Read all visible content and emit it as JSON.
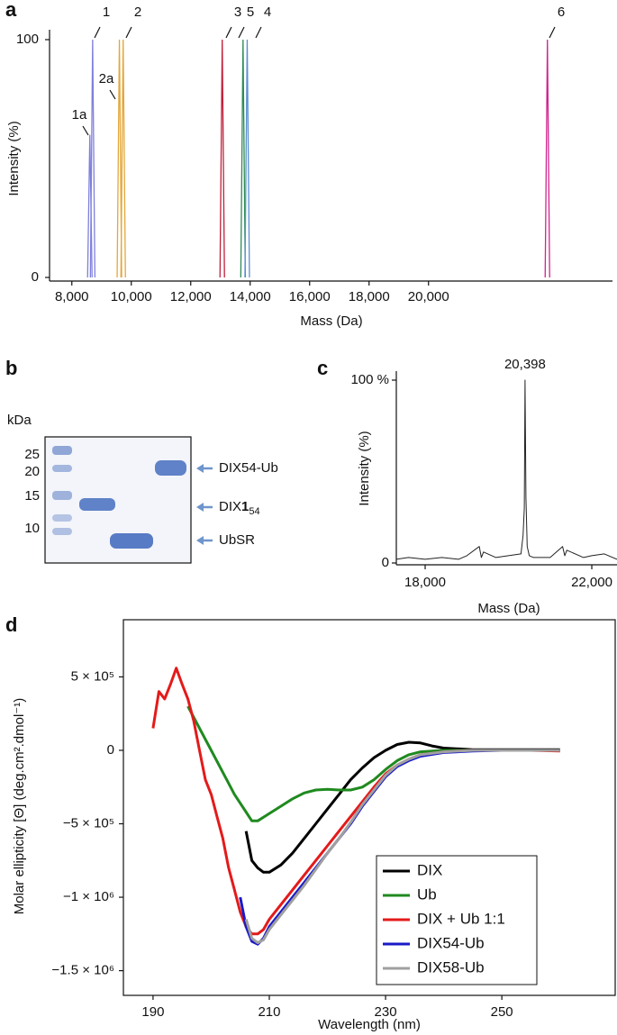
{
  "chart_data": [
    {
      "panel": "a",
      "type": "peaks",
      "xlabel": "Mass (Da)",
      "ylabel": "Intensity (%)",
      "xlim": [
        7250,
        26190
      ],
      "ylim": [
        0,
        100
      ],
      "xticks": [
        {
          "value": 8000,
          "label": "8,000"
        },
        {
          "value": 10000,
          "label": "10,000"
        },
        {
          "value": 12000,
          "label": "12,000"
        },
        {
          "value": 14000,
          "label": "14,000"
        },
        {
          "value": 16000,
          "label": "16,000"
        },
        {
          "value": 18000,
          "label": "18,000"
        },
        {
          "value": 20000,
          "label": "20,000"
        }
      ],
      "yticks": [
        0,
        100
      ],
      "series": [
        {
          "name": "1a",
          "color": "#7f7fdc",
          "x": [
            8606
          ],
          "values": [
            60
          ]
        },
        {
          "name": "1",
          "color": "#7f7fdc",
          "x": [
            8700
          ],
          "values": [
            100
          ]
        },
        {
          "name": "2a",
          "color": "#e3a73a",
          "x": [
            9600
          ],
          "values": [
            100
          ]
        },
        {
          "name": "2",
          "color": "#e3a73a",
          "x": [
            9727
          ],
          "values": [
            100
          ]
        },
        {
          "name": "3",
          "color": "#c0203a",
          "x": [
            13060
          ],
          "values": [
            100
          ]
        },
        {
          "name": "5",
          "color": "#2e8b57",
          "x": [
            13760
          ],
          "values": [
            100
          ]
        },
        {
          "name": "4",
          "color": "#5b8fd2",
          "x": [
            13900
          ],
          "values": [
            100
          ]
        },
        {
          "name": "6",
          "color": "#d0248f",
          "x": [
            24000
          ],
          "values": [
            100
          ]
        }
      ]
    },
    {
      "panel": "c",
      "type": "line",
      "xlabel": "Mass (Da)",
      "ylabel": "Intensity (%)",
      "xlim": [
        17308,
        22605
      ],
      "ylim": [
        0,
        100
      ],
      "xticks": [
        {
          "value": 18000,
          "label": "18,000"
        },
        {
          "value": 22000,
          "label": "22,000"
        }
      ],
      "yticks": [
        0,
        {
          "value": 100,
          "label": "100 %"
        }
      ],
      "annotations": [
        {
          "text": "20,398",
          "x": 20398
        }
      ],
      "series": [
        {
          "color": "#222222",
          "x": [
            17308,
            17600,
            18000,
            18400,
            18800,
            19000,
            19300,
            19350,
            19400,
            19700,
            20000,
            20300,
            20350,
            20380,
            20398,
            20420,
            20450,
            20500,
            20600,
            21000,
            21300,
            21350,
            21400,
            21800,
            22000,
            22300,
            22605
          ],
          "values": [
            2,
            3,
            2,
            3,
            2,
            4,
            9,
            3,
            6,
            3,
            4,
            5,
            15,
            30,
            100,
            36,
            9,
            4,
            3,
            3,
            9,
            4,
            7,
            3,
            4,
            5,
            2
          ]
        }
      ]
    },
    {
      "panel": "d",
      "type": "line",
      "xlabel": "Wavelength (nm)",
      "ylabel": "Molar ellipticity [Θ] (deg.cm².dmol⁻¹)",
      "xlim": [
        184.9,
        269.5
      ],
      "ylim": [
        -1668000,
        889000
      ],
      "xticks": [
        190,
        210,
        230,
        250
      ],
      "yticks": [
        {
          "value": 500000,
          "label": "5 × 10⁵"
        },
        0,
        {
          "value": -500000,
          "label": "−5 × 10⁵"
        },
        {
          "value": -1000000,
          "label": "−1 × 10⁶"
        },
        {
          "value": -1500000,
          "label": "−1.5 × 10⁶"
        }
      ],
      "legend": "lower right",
      "series": [
        {
          "name": "DIX",
          "color": "#000000",
          "x": [
            206,
            207,
            208,
            209,
            210,
            212,
            214,
            216,
            218,
            220,
            222,
            224,
            226,
            228,
            230,
            232,
            234,
            236,
            238,
            240,
            245,
            250,
            260
          ],
          "values": [
            -550000,
            -750000,
            -800000,
            -830000,
            -830000,
            -780000,
            -700000,
            -600000,
            -500000,
            -400000,
            -300000,
            -200000,
            -120000,
            -50000,
            0,
            40000,
            55000,
            50000,
            30000,
            15000,
            5000,
            5000,
            5000
          ]
        },
        {
          "name": "Ub",
          "color": "#1f8a1f",
          "x": [
            196,
            198,
            200,
            202,
            204,
            206,
            207,
            208,
            210,
            212,
            214,
            216,
            218,
            220,
            222,
            224,
            226,
            228,
            230,
            232,
            234,
            236,
            240,
            250,
            260
          ],
          "values": [
            300000,
            150000,
            0,
            -150000,
            -300000,
            -420000,
            -480000,
            -480000,
            -430000,
            -380000,
            -330000,
            -290000,
            -270000,
            -265000,
            -270000,
            -270000,
            -250000,
            -200000,
            -130000,
            -70000,
            -30000,
            -10000,
            0,
            0,
            0
          ]
        },
        {
          "name": "DIX + Ub 1:1",
          "color": "#e41a1a",
          "x": [
            190,
            191,
            192,
            193,
            194,
            195,
            196,
            197,
            198,
            199,
            200,
            201,
            202,
            203,
            204,
            205,
            206,
            207,
            208,
            209,
            210,
            212,
            214,
            216,
            218,
            220,
            222,
            224,
            226,
            228,
            230,
            232,
            234,
            236,
            240,
            245,
            250,
            255,
            260
          ],
          "values": [
            150000,
            400000,
            350000,
            450000,
            560000,
            450000,
            350000,
            200000,
            0,
            -200000,
            -300000,
            -450000,
            -600000,
            -800000,
            -950000,
            -1100000,
            -1200000,
            -1250000,
            -1250000,
            -1220000,
            -1150000,
            -1050000,
            -950000,
            -850000,
            -750000,
            -650000,
            -550000,
            -450000,
            -350000,
            -250000,
            -160000,
            -100000,
            -60000,
            -30000,
            -10000,
            0,
            0,
            0,
            -5000
          ]
        },
        {
          "name": "DIX54-Ub",
          "color": "#1a1ac8",
          "x": [
            205,
            206,
            207,
            208,
            209,
            210,
            212,
            214,
            216,
            218,
            220,
            222,
            224,
            226,
            228,
            230,
            232,
            234,
            236,
            240,
            245,
            250,
            255,
            260
          ],
          "values": [
            -1000000,
            -1200000,
            -1300000,
            -1320000,
            -1280000,
            -1200000,
            -1100000,
            -1000000,
            -900000,
            -800000,
            -700000,
            -600000,
            -500000,
            -380000,
            -280000,
            -180000,
            -110000,
            -70000,
            -40000,
            -15000,
            -5000,
            0,
            0,
            0
          ]
        },
        {
          "name": "DIX58-Ub",
          "color": "#a0a0a0",
          "x": [
            206,
            207,
            208,
            209,
            210,
            212,
            214,
            216,
            218,
            220,
            222,
            224,
            226,
            228,
            230,
            232,
            234,
            236,
            240,
            245,
            250,
            255,
            260
          ],
          "values": [
            -1150000,
            -1280000,
            -1310000,
            -1290000,
            -1220000,
            -1120000,
            -1020000,
            -920000,
            -810000,
            -700000,
            -600000,
            -490000,
            -370000,
            -270000,
            -170000,
            -100000,
            -60000,
            -30000,
            -10000,
            0,
            0,
            0,
            0
          ]
        }
      ]
    }
  ],
  "gel": {
    "panel": "b",
    "unit": "kDa",
    "markers": [
      25,
      20,
      15,
      10
    ],
    "bands": [
      {
        "label": "DIX54-Ub"
      },
      {
        "label": "DIX",
        "bold": "1",
        "sub": "54"
      },
      {
        "label": "UbSR"
      }
    ]
  }
}
